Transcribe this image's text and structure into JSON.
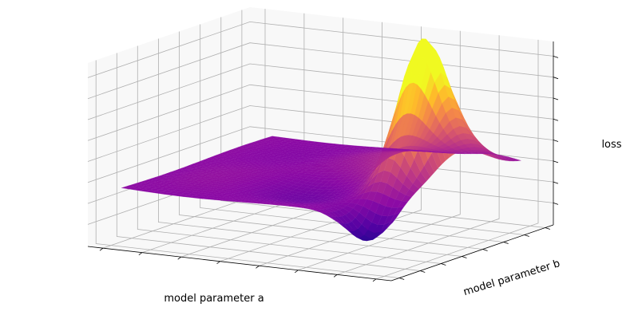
{
  "chart_data": {
    "type": "surface",
    "title": "",
    "xlabel": "model parameter a",
    "ylabel": "model parameter b",
    "zlabel": "loss",
    "colormap": "plasma",
    "colormap_stops": [
      "#0d0887",
      "#5302a3",
      "#8b0aa5",
      "#b83289",
      "#db5c68",
      "#f48849",
      "#febc2a",
      "#f0f921"
    ],
    "grid": true,
    "tick_labels_shown": false,
    "x_tick_count": 8,
    "y_tick_count": 8,
    "z_tick_count": 8,
    "zlim_approx": [
      -0.35,
      1.0
    ],
    "surface_features": [
      {
        "kind": "peak",
        "location": "high a, mid b",
        "approx_height": 1.0
      },
      {
        "kind": "valley",
        "location": "mid a, low b",
        "approx_depth": -0.3
      },
      {
        "kind": "plateau",
        "location": "elsewhere",
        "approx_height": 0.0
      }
    ]
  }
}
